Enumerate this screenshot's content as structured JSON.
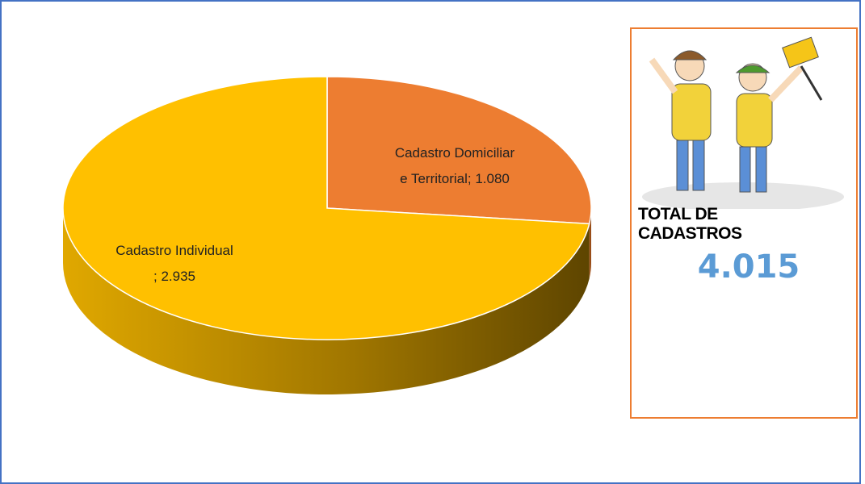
{
  "chart_data": {
    "type": "pie",
    "three_d": true,
    "categories": [
      "Cadastro Domiciliar e Territorial",
      "Cadastro Individual"
    ],
    "values": [
      1080,
      2935
    ],
    "value_labels": [
      "1.080",
      "2.935"
    ],
    "label_separator": "; ",
    "colors": [
      "#ED7D31",
      "#FFC000"
    ]
  },
  "summary": {
    "title": "TOTAL DE CADASTROS",
    "total": "4.015"
  }
}
